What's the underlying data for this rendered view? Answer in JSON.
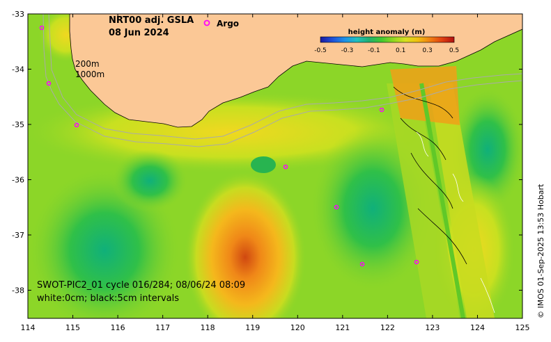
{
  "map": {
    "title_line1": "NRT00 adj. GSLA",
    "title_line2": "08 Jun 2024",
    "argo_label": "Argo",
    "isobath_labels": [
      "200m",
      "1000m"
    ],
    "swot_line1": "SWOT-PIC2_01 cycle 016/284; 08/06/24 08:09",
    "swot_line2": "white:0cm; black:5cm intervals",
    "credit": "© IMOS 01-Sep-2025 13:53 Hobart"
  },
  "axes": {
    "x_ticks": [
      "114",
      "115",
      "116",
      "117",
      "118",
      "119",
      "120",
      "121",
      "122",
      "123",
      "124",
      "125"
    ],
    "y_ticks": [
      "-33",
      "-34",
      "-35",
      "-36",
      "-37",
      "-38"
    ]
  },
  "colorbar": {
    "title": "height anomaly (m)",
    "ticks": [
      "-0.5",
      "-0.3",
      "-0.1",
      "0.1",
      "0.3",
      "0.5"
    ],
    "colors": [
      "#1a1aa0",
      "#1e50d8",
      "#1e90e8",
      "#20c0c0",
      "#20b070",
      "#40c830",
      "#90d820",
      "#d8e020",
      "#f0c010",
      "#f08010",
      "#e04010",
      "#b01010"
    ]
  },
  "colors": {
    "land": "#fbc896",
    "ocean_base": "#8cd628",
    "argo_marker": "#ff00ff"
  }
}
